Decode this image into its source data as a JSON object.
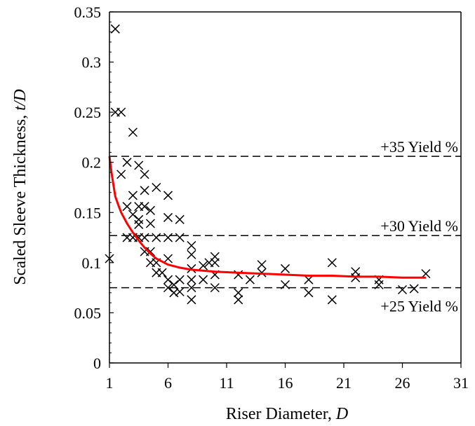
{
  "chart_data": {
    "type": "scatter",
    "xlabel": "Riser Diameter, ",
    "xlabel_var": "D",
    "ylabel": "Scaled Sleeve Thickness, ",
    "ylabel_var": "t/D",
    "xlim": [
      1,
      31
    ],
    "ylim": [
      0,
      0.35
    ],
    "x_ticks": [
      1,
      6,
      11,
      16,
      21,
      26,
      31
    ],
    "y_ticks": [
      0,
      0.05,
      0.1,
      0.15,
      0.2,
      0.25,
      0.3,
      0.35
    ],
    "x_tick_labels": [
      "1",
      "6",
      "11",
      "16",
      "21",
      "26",
      "31"
    ],
    "y_tick_labels": [
      "0",
      "0.05",
      "0.1",
      "0.15",
      "0.2",
      "0.25",
      "0.3",
      "0.35"
    ],
    "grid": false,
    "reference_lines": [
      {
        "label": "+35 Yield %",
        "y": 0.206
      },
      {
        "label": "+30 Yield %",
        "y": 0.127
      },
      {
        "label": "+25 Yield %",
        "y": 0.075
      }
    ],
    "points": {
      "marker": "x",
      "x": [
        1,
        1.5,
        1.5,
        2,
        2,
        2.5,
        2.5,
        2.5,
        3,
        3,
        3,
        3,
        3.5,
        3.5,
        3.5,
        3.5,
        3.5,
        4,
        4,
        4,
        4,
        4,
        4.5,
        4.5,
        4.5,
        4.5,
        5,
        5,
        5,
        5,
        5.5,
        6,
        6,
        6,
        6,
        6,
        6,
        6.5,
        6.5,
        7,
        7,
        7,
        7,
        8,
        8,
        8,
        8,
        8,
        8,
        9,
        9,
        9.5,
        10,
        10,
        10,
        10,
        12,
        12,
        12,
        13,
        14,
        14,
        16,
        16,
        18,
        18,
        20,
        20,
        22,
        22,
        24,
        24,
        26,
        27,
        28
      ],
      "y": [
        0.104,
        0.333,
        0.25,
        0.25,
        0.188,
        0.2,
        0.125,
        0.156,
        0.23,
        0.167,
        0.148,
        0.125,
        0.197,
        0.143,
        0.138,
        0.125,
        0.156,
        0.188,
        0.172,
        0.156,
        0.125,
        0.111,
        0.152,
        0.139,
        0.111,
        0.1,
        0.175,
        0.125,
        0.1,
        0.09,
        0.09,
        0.167,
        0.145,
        0.125,
        0.104,
        0.083,
        0.075,
        0.078,
        0.07,
        0.143,
        0.125,
        0.083,
        0.071,
        0.117,
        0.108,
        0.094,
        0.083,
        0.075,
        0.063,
        0.097,
        0.083,
        0.1,
        0.106,
        0.1,
        0.088,
        0.075,
        0.088,
        0.07,
        0.063,
        0.083,
        0.098,
        0.09,
        0.094,
        0.078,
        0.083,
        0.07,
        0.1,
        0.063,
        0.091,
        0.085,
        0.083,
        0.078,
        0.073,
        0.074,
        0.089
      ],
      "color": "#000000"
    },
    "trend_line": {
      "x": [
        1.0,
        1.2,
        1.5,
        1.8,
        2.0,
        2.5,
        3.0,
        3.5,
        4.0,
        4.5,
        5.0,
        6.0,
        7.0,
        8.0,
        10.0,
        12.0,
        14.0,
        16.0,
        18.0,
        20.0,
        22.0,
        24.0,
        26.0,
        28.0
      ],
      "y": [
        0.206,
        0.188,
        0.166,
        0.156,
        0.15,
        0.139,
        0.13,
        0.122,
        0.115,
        0.109,
        0.104,
        0.098,
        0.095,
        0.093,
        0.091,
        0.09,
        0.089,
        0.088,
        0.087,
        0.087,
        0.086,
        0.086,
        0.085,
        0.085
      ],
      "color": "#ff0000"
    }
  }
}
